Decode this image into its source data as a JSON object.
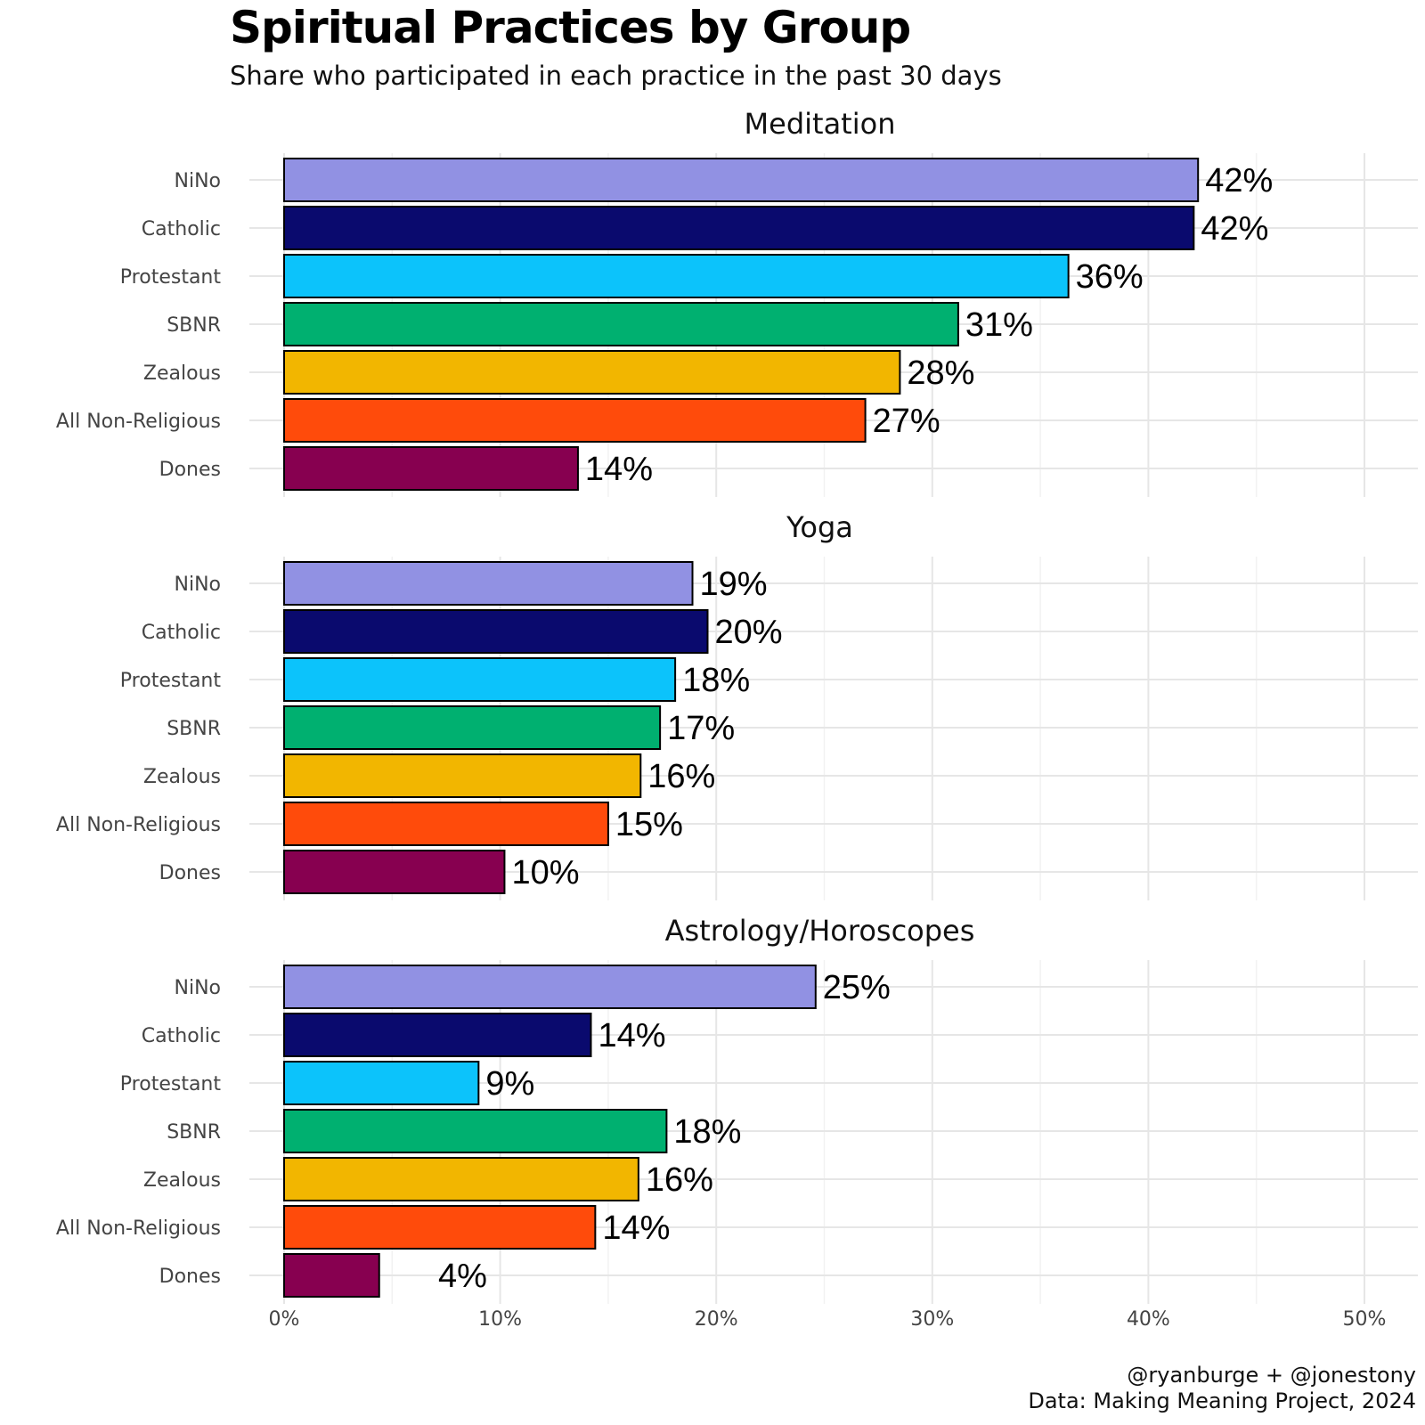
{
  "chart_data": {
    "type": "bar",
    "orientation": "horizontal",
    "title": "Spiritual Practices by Group",
    "subtitle": "Share who participated in each practice in the past 30 days",
    "categories": [
      "NiNo",
      "Catholic",
      "Protestant",
      "SBNR",
      "Zealous",
      "All Non-Religious",
      "Dones"
    ],
    "colors": [
      "#9191e3",
      "#0a0a6e",
      "#0cc3fb",
      "#00b070",
      "#f2b600",
      "#ff4b0b",
      "#870050"
    ],
    "xlim": [
      0,
      52
    ],
    "x_ticks": [
      0,
      10,
      20,
      30,
      40,
      50
    ],
    "x_tick_labels": [
      "0%",
      "10%",
      "20%",
      "30%",
      "40%",
      "50%"
    ],
    "grid": true,
    "legend": "none",
    "panels": [
      {
        "title": "Meditation",
        "values": [
          42.3,
          42.1,
          36.3,
          31.2,
          28.5,
          26.9,
          13.6
        ],
        "labels": [
          "42%",
          "42%",
          "36%",
          "31%",
          "28%",
          "27%",
          "14%"
        ]
      },
      {
        "title": "Yoga",
        "values": [
          18.9,
          19.6,
          18.1,
          17.4,
          16.5,
          15.0,
          10.2
        ],
        "labels": [
          "19%",
          "20%",
          "18%",
          "17%",
          "16%",
          "15%",
          "10%"
        ]
      },
      {
        "title": "Astrology/Horoscopes",
        "values": [
          24.6,
          14.2,
          9.0,
          17.7,
          16.4,
          14.4,
          4.4
        ],
        "labels": [
          "25%",
          "14%",
          "9%",
          "18%",
          "16%",
          "14%",
          "4%"
        ]
      }
    ]
  },
  "caption": {
    "line1": "@ryanburge + @jonestony",
    "line2": "Data: Making Meaning Project, 2024"
  }
}
